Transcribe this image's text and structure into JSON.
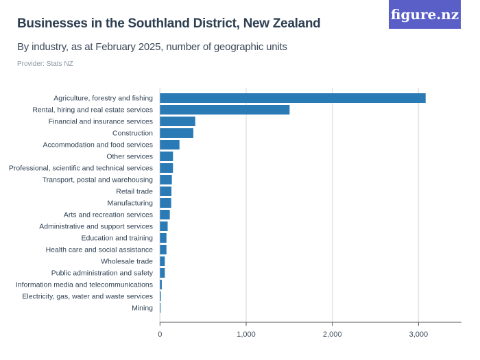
{
  "header": {
    "title": "Businesses in the Southland District, New Zealand",
    "subtitle": "By industry, as at February 2025, number of geographic units",
    "provider": "Provider: Stats NZ",
    "logo": "figure.nz"
  },
  "colors": {
    "bar": "#2a7ab5",
    "logo_bg": "#5a5fc7"
  },
  "chart_data": {
    "type": "bar",
    "orientation": "horizontal",
    "categories": [
      "Agriculture, forestry and fishing",
      "Rental, hiring and real estate services",
      "Financial and insurance services",
      "Construction",
      "Accommodation and food services",
      "Other services",
      "Professional, scientific and technical services",
      "Transport, postal and warehousing",
      "Retail trade",
      "Manufacturing",
      "Arts and recreation services",
      "Administrative and support services",
      "Education and training",
      "Health care and social assistance",
      "Wholesale trade",
      "Public administration and safety",
      "Information media and telecommunications",
      "Electricity, gas, water and waste services",
      "Mining"
    ],
    "values": [
      3082,
      1504,
      409,
      387,
      226,
      151,
      151,
      138,
      133,
      130,
      114,
      89,
      75,
      75,
      56,
      56,
      21,
      11,
      5
    ],
    "xlim": [
      0,
      3500
    ],
    "ticks": [
      0,
      1000,
      2000,
      3000
    ],
    "tick_labels": [
      "0",
      "1,000",
      "2,000",
      "3,000"
    ],
    "grid": true
  }
}
